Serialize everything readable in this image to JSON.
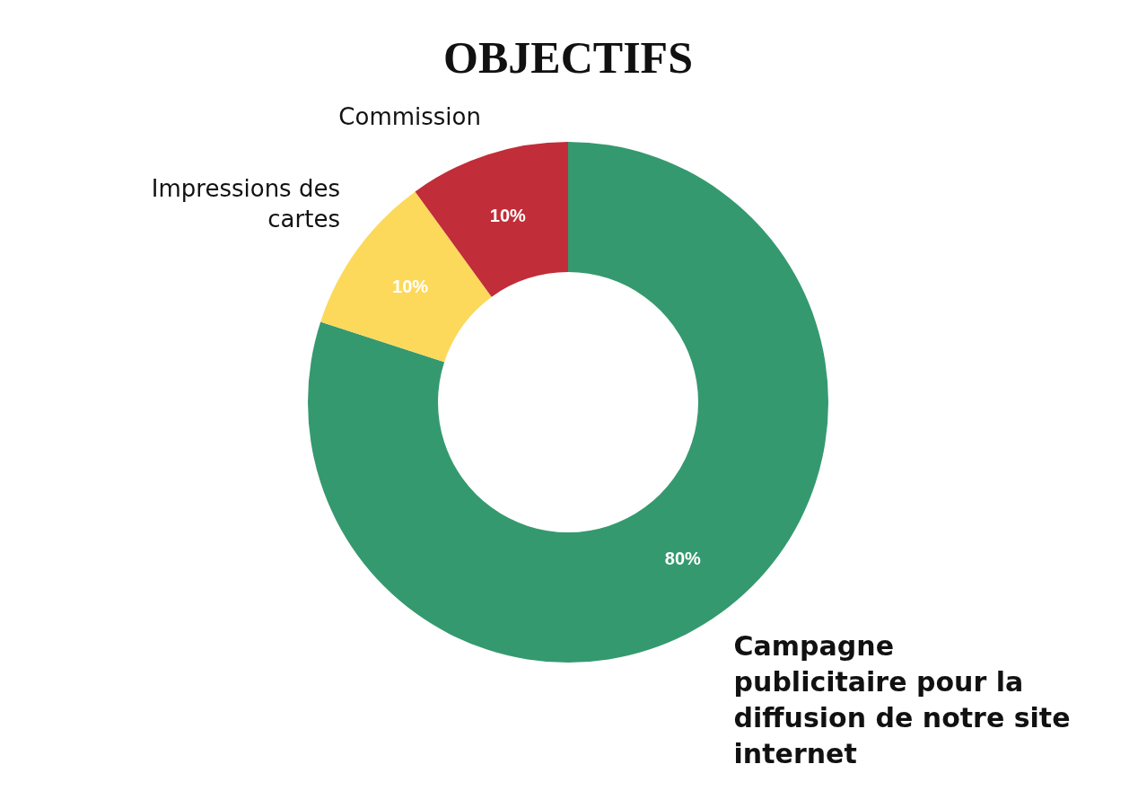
{
  "chart_data": {
    "type": "donut",
    "title": "OBJECTIFS",
    "categories": [
      "Campagne publicitaire pour la diffusion de notre site internet",
      "Impressions des cartes",
      "Commission"
    ],
    "values": [
      80,
      10,
      10
    ],
    "colors": [
      "#35996f",
      "#fcd95b",
      "#c12d38"
    ],
    "value_labels": [
      "80%",
      "10%",
      "10%"
    ],
    "legend": false
  }
}
